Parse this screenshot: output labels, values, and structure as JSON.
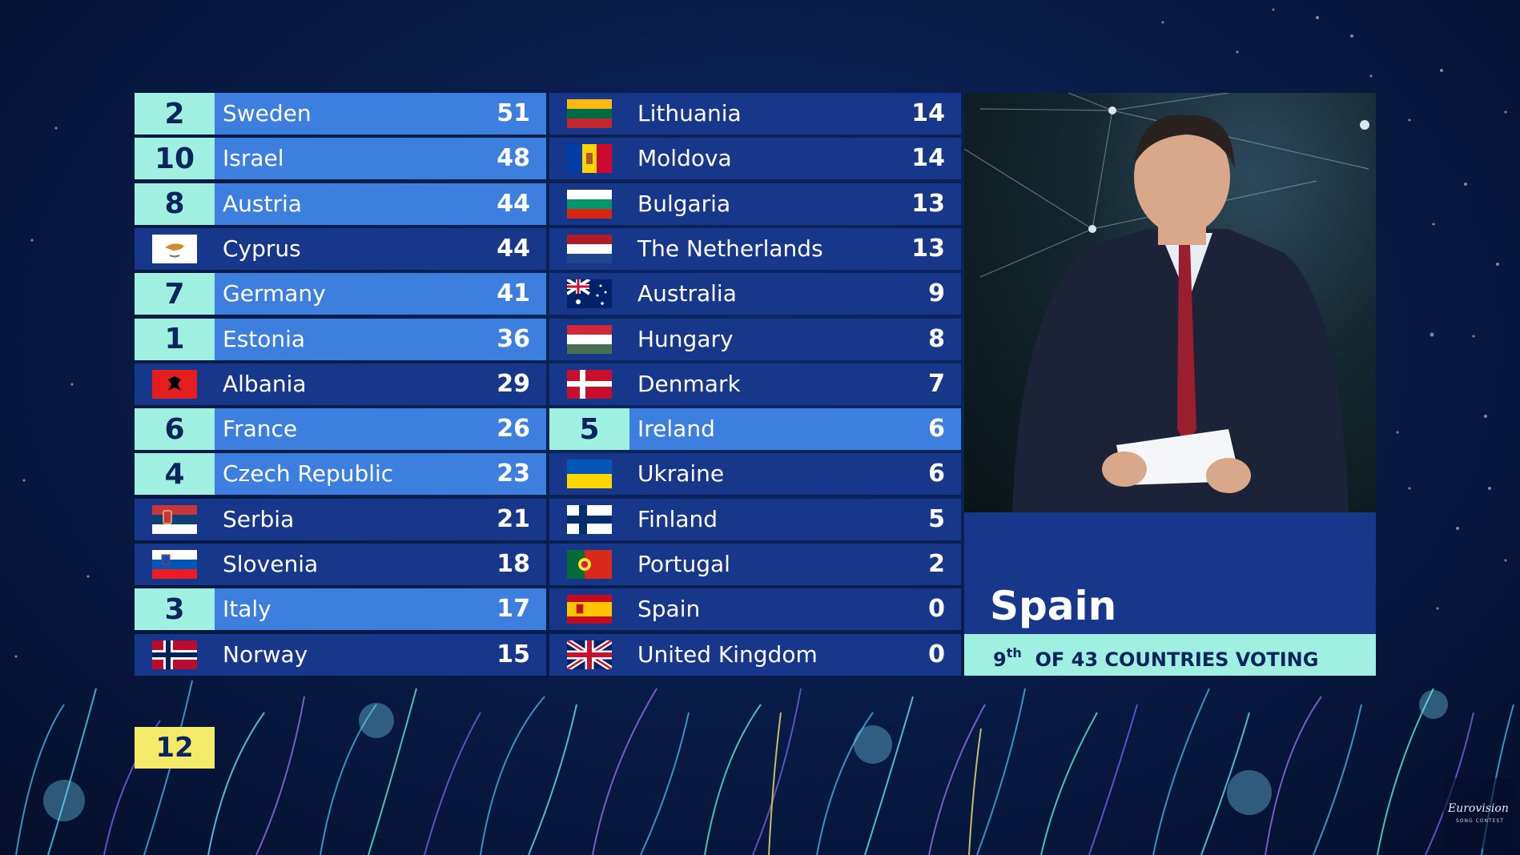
{
  "scoreboard": {
    "left_column": [
      {
        "points": "2",
        "country": "Sweden",
        "score": "51",
        "flag": "sweden-flag-icon"
      },
      {
        "points": "10",
        "country": "Israel",
        "score": "48",
        "flag": "israel-flag-icon"
      },
      {
        "points": "8",
        "country": "Austria",
        "score": "44",
        "flag": "austria-flag-icon"
      },
      {
        "points": "",
        "country": "Cyprus",
        "score": "44",
        "flag": "cyprus-flag-icon"
      },
      {
        "points": "7",
        "country": "Germany",
        "score": "41",
        "flag": "germany-flag-icon"
      },
      {
        "points": "1",
        "country": "Estonia",
        "score": "36",
        "flag": "estonia-flag-icon"
      },
      {
        "points": "",
        "country": "Albania",
        "score": "29",
        "flag": "albania-flag-icon"
      },
      {
        "points": "6",
        "country": "France",
        "score": "26",
        "flag": "france-flag-icon"
      },
      {
        "points": "4",
        "country": "Czech Republic",
        "score": "23",
        "flag": "czech-republic-flag-icon"
      },
      {
        "points": "",
        "country": "Serbia",
        "score": "21",
        "flag": "serbia-flag-icon"
      },
      {
        "points": "",
        "country": "Slovenia",
        "score": "18",
        "flag": "slovenia-flag-icon"
      },
      {
        "points": "3",
        "country": "Italy",
        "score": "17",
        "flag": "italy-flag-icon"
      },
      {
        "points": "",
        "country": "Norway",
        "score": "15",
        "flag": "norway-flag-icon"
      }
    ],
    "right_column": [
      {
        "points": "",
        "country": "Lithuania",
        "score": "14",
        "flag": "lithuania-flag-icon"
      },
      {
        "points": "",
        "country": "Moldova",
        "score": "14",
        "flag": "moldova-flag-icon"
      },
      {
        "points": "",
        "country": "Bulgaria",
        "score": "13",
        "flag": "bulgaria-flag-icon"
      },
      {
        "points": "",
        "country": "The Netherlands",
        "score": "13",
        "flag": "netherlands-flag-icon"
      },
      {
        "points": "",
        "country": "Australia",
        "score": "9",
        "flag": "australia-flag-icon"
      },
      {
        "points": "",
        "country": "Hungary",
        "score": "8",
        "flag": "hungary-flag-icon"
      },
      {
        "points": "",
        "country": "Denmark",
        "score": "7",
        "flag": "denmark-flag-icon"
      },
      {
        "points": "5",
        "country": "Ireland",
        "score": "6",
        "flag": "ireland-flag-icon"
      },
      {
        "points": "",
        "country": "Ukraine",
        "score": "6",
        "flag": "ukraine-flag-icon"
      },
      {
        "points": "",
        "country": "Finland",
        "score": "5",
        "flag": "finland-flag-icon"
      },
      {
        "points": "",
        "country": "Portugal",
        "score": "2",
        "flag": "portugal-flag-icon"
      },
      {
        "points": "",
        "country": "Spain",
        "score": "0",
        "flag": "spain-flag-icon"
      },
      {
        "points": "",
        "country": "United Kingdom",
        "score": "0",
        "flag": "united-kingdom-flag-icon"
      }
    ]
  },
  "spokesperson": {
    "country": "Spain",
    "order_number": "9",
    "order_suffix": "th",
    "order_text": "OF 43 COUNTRIES VOTING"
  },
  "pending_points": "12",
  "logo": {
    "brand": "Eurovision",
    "tagline": "SONG CONTEST"
  },
  "colors": {
    "row_default": "#17388a",
    "row_voted": "#3d7fde",
    "points_box": "#9ff0e0",
    "twelve_box": "#f4ea6a",
    "text_dark": "#0b245e"
  }
}
